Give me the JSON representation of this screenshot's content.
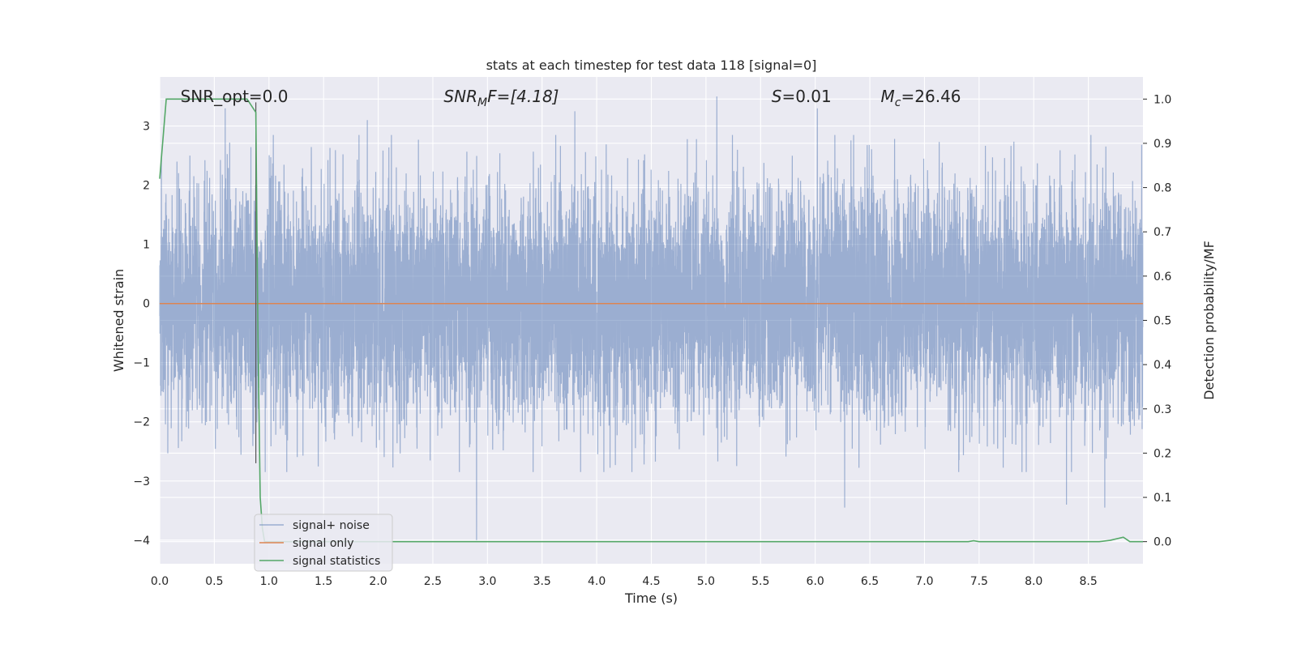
{
  "chart_data": {
    "type": "line",
    "title": "stats at each timestep for test data 118 [signal=0]",
    "xlabel": "Time (s)",
    "ylabel": "Whitened strain",
    "y2label": "Detection probability/MF",
    "xlim": [
      0.0,
      9.0
    ],
    "ylim": [
      -4.4,
      3.83
    ],
    "y2lim": [
      -0.05,
      1.05
    ],
    "x_ticks": [
      "0.0",
      "0.5",
      "1.0",
      "1.5",
      "2.0",
      "2.5",
      "3.0",
      "3.5",
      "4.0",
      "4.5",
      "5.0",
      "5.5",
      "6.0",
      "6.5",
      "7.0",
      "7.5",
      "8.0",
      "8.5"
    ],
    "y_ticks": [
      "−4",
      "−3",
      "−2",
      "−1",
      "0",
      "1",
      "2",
      "3"
    ],
    "y2_ticks": [
      "0.0",
      "0.1",
      "0.2",
      "0.3",
      "0.4",
      "0.5",
      "0.6",
      "0.7",
      "0.8",
      "0.9",
      "1.0"
    ],
    "grid": true,
    "legend_position": "lower-left",
    "annotations": [
      {
        "text": "SNR_opt=0.0",
        "x": 0.19,
        "y": 3.5
      },
      {
        "text": "SNR",
        "sub": "M",
        "suffix": "F=[4.18]",
        "italic": true,
        "x": 2.6,
        "y": 3.5
      },
      {
        "text": "S",
        "suffix": "=0.01",
        "italic": true,
        "x": 5.6,
        "y": 3.5
      },
      {
        "text": "M",
        "sub": "c",
        "suffix": "=26.46",
        "italic": true,
        "x": 6.6,
        "y": 3.5
      }
    ],
    "vline_x": 0.88,
    "series": [
      {
        "name": "signal+ noise",
        "color": "#4c72b0",
        "opacity": 0.5,
        "style": "noise",
        "sample_rate": 1024,
        "envelope_std": 0.95,
        "seed": 118,
        "notable_spikes": [
          [
            0.6,
            3.3
          ],
          [
            2.9,
            -4.0
          ],
          [
            5.1,
            3.5
          ],
          [
            6.02,
            3.3
          ],
          [
            6.27,
            -3.45
          ],
          [
            8.3,
            -3.4
          ],
          [
            8.65,
            -3.45
          ],
          [
            3.8,
            3.25
          ],
          [
            1.9,
            3.1
          ]
        ]
      },
      {
        "name": "signal only",
        "color": "#dd8452",
        "x": [
          0.0,
          9.0
        ],
        "y": [
          0.0,
          0.0
        ]
      },
      {
        "name": "signal statistics",
        "color": "#55a868",
        "axis": "right",
        "x": [
          0.0,
          0.06,
          0.12,
          0.25,
          0.5,
          0.8,
          0.88,
          0.9,
          0.92,
          0.94,
          0.96,
          0.98,
          1.0,
          1.5,
          2.0,
          3.0,
          4.0,
          5.0,
          6.0,
          7.0,
          7.4,
          7.45,
          7.5,
          8.0,
          8.6,
          8.7,
          8.82,
          8.88,
          9.0
        ],
        "y": [
          0.82,
          1.0,
          1.0,
          1.0,
          1.0,
          1.0,
          0.97,
          0.45,
          0.1,
          0.03,
          0.0,
          0.0,
          0.0,
          0.0,
          0.0,
          0.0,
          0.0,
          0.0,
          0.0,
          0.0,
          0.0,
          0.002,
          0.0,
          0.0,
          0.0,
          0.003,
          0.01,
          0.0,
          0.0
        ]
      }
    ]
  }
}
